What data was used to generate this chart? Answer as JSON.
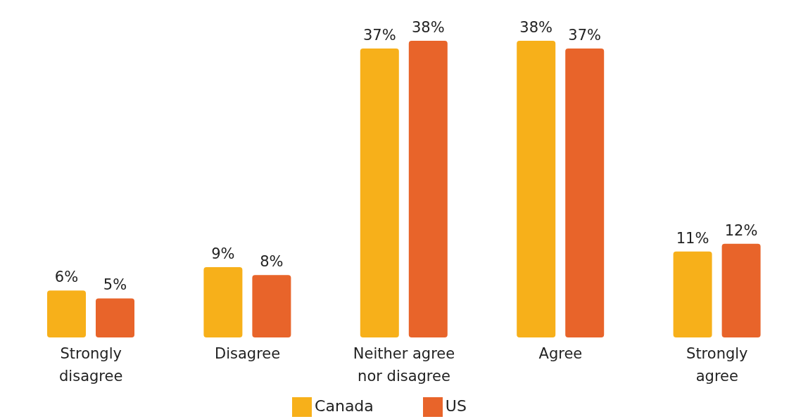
{
  "chart_data": {
    "type": "bar",
    "categories": [
      "Strongly disagree",
      "Disagree",
      "Neither agree nor disagree",
      "Agree",
      "Strongly agree"
    ],
    "series": [
      {
        "name": "Canada",
        "color": "#f7b01a",
        "values": [
          6,
          9,
          37,
          38,
          11
        ],
        "value_labels": [
          "6%",
          "9%",
          "37%",
          "38%",
          "11%"
        ]
      },
      {
        "name": "US",
        "color": "#e8642a",
        "values": [
          5,
          8,
          38,
          37,
          12
        ],
        "value_labels": [
          "5%",
          "8%",
          "38%",
          "37%",
          "12%"
        ]
      }
    ],
    "legend": "bottom"
  }
}
